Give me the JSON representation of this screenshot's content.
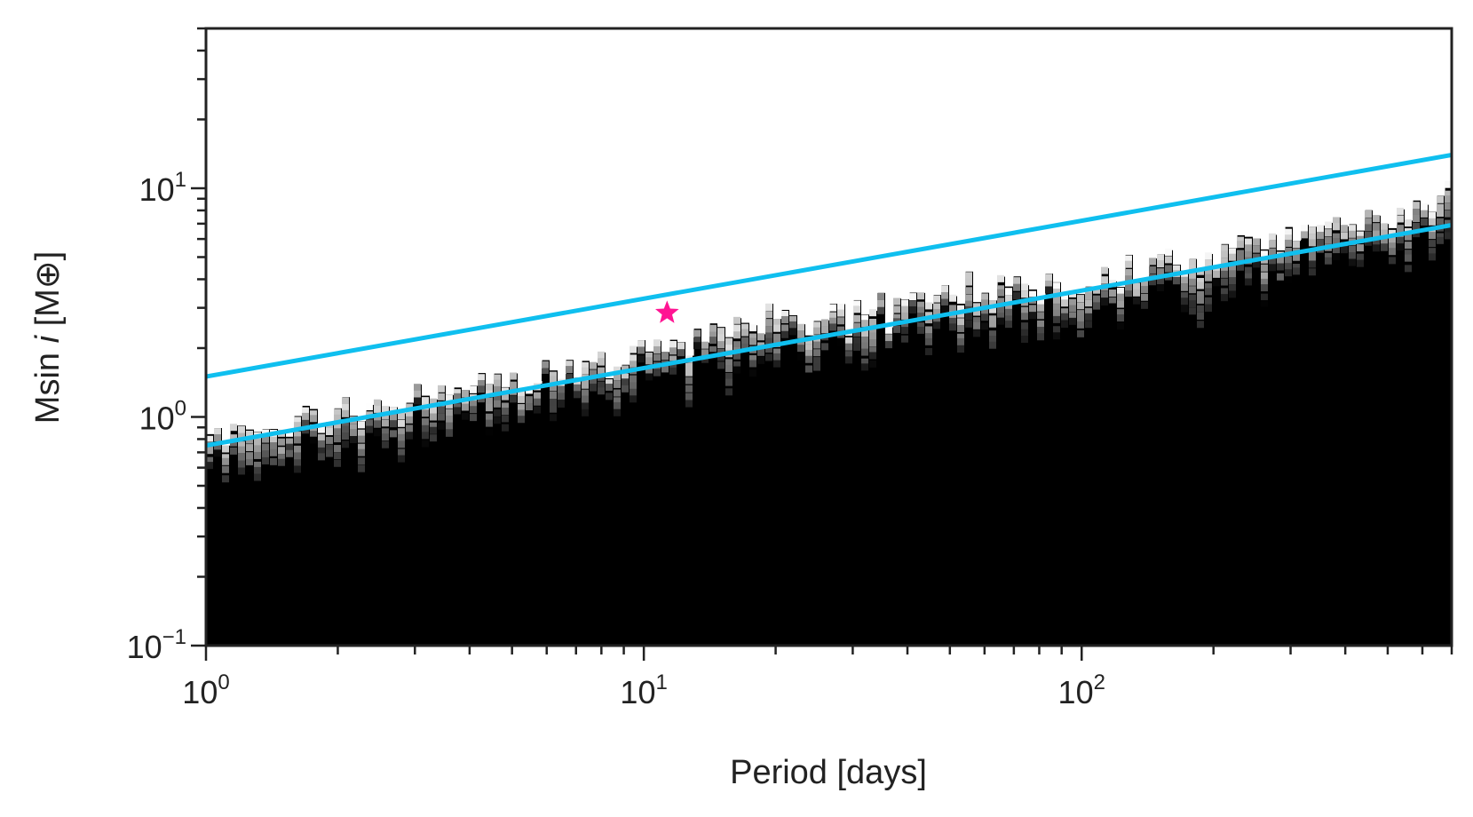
{
  "chart_data": {
    "type": "heatmap",
    "title": "",
    "xlabel": "Period [days]",
    "ylabel_prefix": "Msin ",
    "ylabel_italic": "i",
    "ylabel_suffix": " [M⊕]",
    "x_scale": "log",
    "y_scale": "log",
    "xlim": [
      1,
      700
    ],
    "ylim": [
      0.1,
      50
    ],
    "x_major_ticks": [
      {
        "value": 1,
        "base": "10",
        "exp": "0"
      },
      {
        "value": 10,
        "base": "10",
        "exp": "1"
      },
      {
        "value": 100,
        "base": "10",
        "exp": "2"
      }
    ],
    "y_major_ticks": [
      {
        "value": 0.1,
        "base": "10",
        "exp": "−1"
      },
      {
        "value": 1,
        "base": "10",
        "exp": "0"
      },
      {
        "value": 10,
        "base": "10",
        "exp": "1"
      }
    ],
    "grid": false,
    "colormap": "grayscale (black = detectable region)",
    "colors": {
      "boundary_lines": "#0fbfef",
      "marker": "#ff1493",
      "heatmap_dark": "#000000",
      "axes": "#222222"
    },
    "detection_boundary": {
      "period": [
        1,
        2,
        5,
        10,
        20,
        50,
        100,
        200,
        500,
        700
      ],
      "msini": [
        0.82,
        1.05,
        1.45,
        1.95,
        2.6,
        3.4,
        3.9,
        5.2,
        7.5,
        9.0
      ]
    },
    "series": [
      {
        "type": "line",
        "x": [
          1,
          700
        ],
        "y": [
          1.5,
          14.0
        ]
      },
      {
        "type": "line",
        "x": [
          1,
          700
        ],
        "y": [
          0.75,
          6.9
        ]
      },
      {
        "type": "marker",
        "marker": "star",
        "x": [
          11.3
        ],
        "y": [
          2.85
        ]
      }
    ]
  }
}
